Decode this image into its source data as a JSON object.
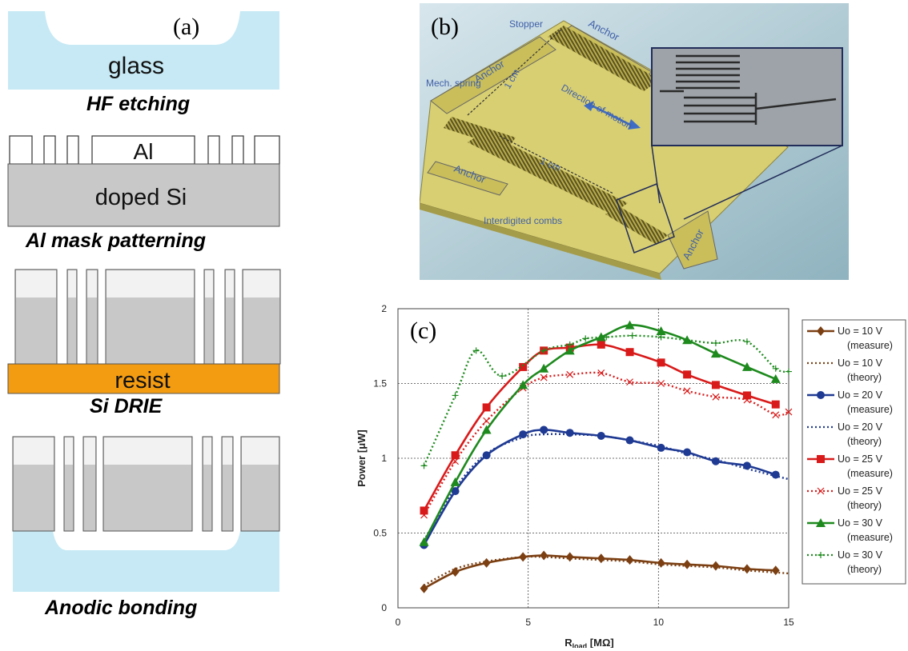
{
  "panel_a": {
    "label": "(a)",
    "steps": [
      {
        "caption": "HF etching",
        "layer_label": "glass"
      },
      {
        "caption": "Al mask patterning",
        "layer_label": "doped Si",
        "mask_label": "Al"
      },
      {
        "caption": "Si DRIE",
        "layer_label": "resist"
      },
      {
        "caption": "Anodic bonding"
      }
    ]
  },
  "panel_b": {
    "label": "(b)",
    "annotations": {
      "stopper": "Stopper",
      "anchor": "Anchor",
      "spring": "Mech. spring",
      "length": "1 cm",
      "motion": "Direction of motion",
      "combs": "Interdigited combs"
    }
  },
  "panel_c": {
    "label": "(c)"
  },
  "colors": {
    "glass": "#c6e9f5",
    "silicon": "#c8c8c8",
    "resist": "#f39c12",
    "chip": "#d8cf72",
    "s10": "#7b3f12",
    "s20": "#1f3a93",
    "s25": "#d91a1a",
    "s30": "#1e8a1e"
  },
  "chart_data": {
    "type": "line",
    "xlabel": "R",
    "xlabel_sub": "load",
    "xlabel_unit": "[MΩ]",
    "ylabel": "Power  [μW]",
    "xlim": [
      0,
      15
    ],
    "ylim": [
      0,
      2
    ],
    "xticks": [
      "0",
      "5",
      "10",
      "15"
    ],
    "yticks": [
      "0",
      "0.5",
      "1",
      "1.5",
      "2"
    ],
    "grid": true,
    "legend_position": "right",
    "series": [
      {
        "name": "Uo = 10 V (measure)",
        "style": "solid",
        "marker": "diamond",
        "color": "#7b3f12",
        "x": [
          1,
          2.2,
          3.4,
          4.8,
          5.6,
          6.6,
          7.8,
          8.9,
          10.1,
          11.1,
          12.2,
          13.4,
          14.5
        ],
        "y": [
          0.13,
          0.24,
          0.3,
          0.34,
          0.35,
          0.34,
          0.33,
          0.32,
          0.3,
          0.29,
          0.28,
          0.26,
          0.25
        ]
      },
      {
        "name": "Uo = 10 V (theory)",
        "style": "dotted",
        "marker": "none",
        "color": "#7b3f12",
        "x": [
          1,
          2.2,
          3.4,
          4.8,
          5.6,
          6.6,
          7.8,
          8.9,
          10.1,
          11.1,
          12.2,
          13.4,
          15
        ],
        "y": [
          0.15,
          0.26,
          0.31,
          0.34,
          0.34,
          0.33,
          0.32,
          0.31,
          0.29,
          0.28,
          0.27,
          0.25,
          0.23
        ]
      },
      {
        "name": "Uo = 20 V (measure)",
        "style": "solid",
        "marker": "circle",
        "color": "#1f3a93",
        "x": [
          1,
          2.2,
          3.4,
          4.8,
          5.6,
          6.6,
          7.8,
          8.9,
          10.1,
          11.1,
          12.2,
          13.4,
          14.5
        ],
        "y": [
          0.42,
          0.78,
          1.02,
          1.16,
          1.19,
          1.17,
          1.15,
          1.12,
          1.07,
          1.04,
          0.98,
          0.95,
          0.89
        ]
      },
      {
        "name": "Uo = 20 V (theory)",
        "style": "dotted",
        "marker": "none",
        "color": "#1f3a93",
        "x": [
          1,
          2.2,
          3.4,
          4.8,
          5.6,
          6.6,
          7.8,
          8.9,
          10.1,
          11.1,
          12.2,
          13.4,
          15
        ],
        "y": [
          0.45,
          0.8,
          1.03,
          1.14,
          1.16,
          1.16,
          1.15,
          1.12,
          1.08,
          1.03,
          0.99,
          0.93,
          0.86
        ]
      },
      {
        "name": "Uo = 25 V (measure)",
        "style": "solid",
        "marker": "square",
        "color": "#d91a1a",
        "x": [
          1,
          2.2,
          3.4,
          4.8,
          5.6,
          6.6,
          7.8,
          8.9,
          10.1,
          11.1,
          12.2,
          13.4,
          14.5
        ],
        "y": [
          0.65,
          1.02,
          1.34,
          1.61,
          1.72,
          1.74,
          1.76,
          1.71,
          1.64,
          1.56,
          1.49,
          1.42,
          1.36
        ]
      },
      {
        "name": "Uo = 25 V (theory)",
        "style": "dotted",
        "marker": "cross",
        "color": "#d91a1a",
        "x": [
          1,
          2.2,
          3.4,
          4.8,
          5.6,
          6.6,
          7.8,
          8.9,
          10.1,
          11.1,
          12.2,
          13.4,
          14.5,
          15
        ],
        "y": [
          0.62,
          0.98,
          1.25,
          1.47,
          1.54,
          1.56,
          1.57,
          1.51,
          1.5,
          1.45,
          1.41,
          1.39,
          1.29,
          1.31
        ]
      },
      {
        "name": "Uo = 30 V (measure)",
        "style": "solid",
        "marker": "triangle",
        "color": "#1e8a1e",
        "x": [
          1,
          2.2,
          3.4,
          4.8,
          5.6,
          6.6,
          7.8,
          8.9,
          10.1,
          11.1,
          12.2,
          13.4,
          14.5
        ],
        "y": [
          0.44,
          0.84,
          1.19,
          1.49,
          1.6,
          1.72,
          1.81,
          1.89,
          1.85,
          1.79,
          1.7,
          1.61,
          1.53
        ]
      },
      {
        "name": "Uo = 30 V (theory)",
        "style": "dotted",
        "marker": "plus",
        "color": "#1e8a1e",
        "x": [
          1,
          2.2,
          3,
          4,
          5.6,
          6.6,
          7.2,
          8,
          9,
          10.1,
          11.1,
          12.2,
          13.4,
          14.5,
          15
        ],
        "y": [
          0.95,
          1.42,
          1.72,
          1.55,
          1.72,
          1.76,
          1.8,
          1.81,
          1.82,
          1.81,
          1.79,
          1.77,
          1.78,
          1.6,
          1.58
        ]
      }
    ],
    "legend_lines": [
      {
        "text": "Uo = 10 V",
        "sub": "(measure)"
      },
      {
        "text": "Uo = 10 V",
        "sub": "(theory)"
      },
      {
        "text": "Uo = 20 V",
        "sub": "(measure)"
      },
      {
        "text": "Uo = 20 V",
        "sub": "(theory)"
      },
      {
        "text": "Uo = 25 V",
        "sub": "(measure)"
      },
      {
        "text": "Uo = 25 V",
        "sub": "(theory)"
      },
      {
        "text": "Uo = 30 V",
        "sub": "(measure)"
      },
      {
        "text": "Uo = 30 V",
        "sub": "(theory)"
      }
    ]
  }
}
